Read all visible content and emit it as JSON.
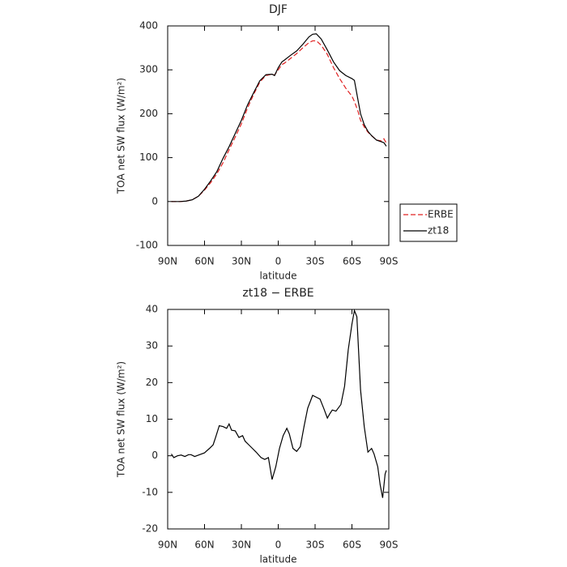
{
  "chart_data": [
    {
      "type": "line",
      "title": "DJF",
      "xlabel": "latitude",
      "ylabel": "TOA net SW flux (W/m²)",
      "x": [
        87,
        85,
        80,
        75,
        70,
        65,
        60,
        55,
        50,
        45,
        40,
        35,
        30,
        25,
        20,
        15,
        10,
        5,
        3,
        0,
        -3,
        -5,
        -10,
        -15,
        -20,
        -25,
        -28,
        -31,
        -35,
        -40,
        -45,
        -50,
        -55,
        -60,
        -62,
        -65,
        -67,
        -70,
        -73,
        -76,
        -80,
        -84,
        -86,
        -88
      ],
      "series": [
        {
          "name": "ERBE",
          "color": "#e02020",
          "dash": true,
          "values": [
            0,
            0,
            0,
            1,
            4,
            12,
            26,
            43,
            63,
            88,
            118,
            147,
            177,
            213,
            244,
            272,
            287,
            290,
            288,
            300,
            312,
            315,
            326,
            337,
            350,
            362,
            366,
            366,
            356,
            335,
            305,
            280,
            258,
            240,
            228,
            205,
            185,
            170,
            158,
            150,
            140,
            138,
            143,
            133
          ]
        },
        {
          "name": "zt18",
          "color": "#000000",
          "dash": false,
          "values": [
            0,
            0,
            0,
            1,
            4,
            12,
            28,
            47,
            68,
            98,
            125,
            155,
            185,
            220,
            248,
            275,
            289,
            290,
            287,
            305,
            318,
            322,
            333,
            343,
            358,
            375,
            381,
            382,
            370,
            345,
            318,
            298,
            287,
            280,
            276,
            230,
            200,
            175,
            160,
            150,
            140,
            136,
            134,
            126
          ]
        }
      ],
      "xlim": [
        90,
        -90
      ],
      "xticks": [
        {
          "value": 90,
          "label": "90N"
        },
        {
          "value": 60,
          "label": "60N"
        },
        {
          "value": 30,
          "label": "30N"
        },
        0,
        {
          "value": -30,
          "label": "30S"
        },
        {
          "value": -60,
          "label": "60S"
        },
        {
          "value": -90,
          "label": "90S"
        }
      ],
      "ylim": [
        -100,
        400
      ],
      "yticks": [
        -100,
        0,
        100,
        200,
        300,
        400
      ],
      "grid": false,
      "legend": "right"
    },
    {
      "type": "line",
      "title": "zt18 − ERBE",
      "xlabel": "latitude",
      "ylabel": "TOA net SW flux (W/m²)",
      "color": "#000000",
      "x": [
        87,
        85,
        82,
        79,
        76,
        73,
        71,
        68,
        64,
        60,
        56,
        53,
        51,
        48,
        45,
        42,
        40,
        38,
        35,
        32,
        29,
        27,
        24,
        21,
        18,
        14,
        11,
        8,
        5,
        2,
        -1,
        -4,
        -7,
        -9,
        -12,
        -15,
        -18,
        -21,
        -24,
        -28,
        -31,
        -34,
        -37,
        -40,
        -42,
        -44,
        -47,
        -51,
        -54,
        -57,
        -60,
        -62,
        -64,
        -67,
        -70,
        -73,
        -76,
        -78,
        -81,
        -83,
        -85,
        -87,
        -88
      ],
      "values": [
        0.5,
        -0.5,
        0,
        0.2,
        -0.2,
        0.3,
        0.3,
        -0.2,
        0.3,
        0.8,
        2,
        3,
        5,
        8.2,
        8,
        7.5,
        8.7,
        7,
        6.8,
        5,
        5.5,
        4,
        3,
        2,
        1,
        -0.5,
        -1,
        -0.5,
        -6.5,
        -3,
        2,
        5.5,
        7.5,
        6,
        2,
        1.2,
        2.5,
        8,
        13,
        16.5,
        16,
        15.5,
        13,
        10.3,
        11.5,
        12.5,
        12.2,
        14,
        19,
        29,
        36,
        39.7,
        38,
        18,
        8,
        1,
        2,
        0.5,
        -3,
        -8,
        -11.5,
        -5,
        -4
      ],
      "xlim": [
        90,
        -90
      ],
      "xticks": [
        {
          "value": 90,
          "label": "90N"
        },
        {
          "value": 60,
          "label": "60N"
        },
        {
          "value": 30,
          "label": "30N"
        },
        0,
        {
          "value": -30,
          "label": "30S"
        },
        {
          "value": -60,
          "label": "60S"
        },
        {
          "value": -90,
          "label": "90S"
        }
      ],
      "ylim": [
        -20,
        40
      ],
      "yticks": [
        -20,
        -10,
        0,
        10,
        20,
        30,
        40
      ],
      "grid": false
    }
  ]
}
